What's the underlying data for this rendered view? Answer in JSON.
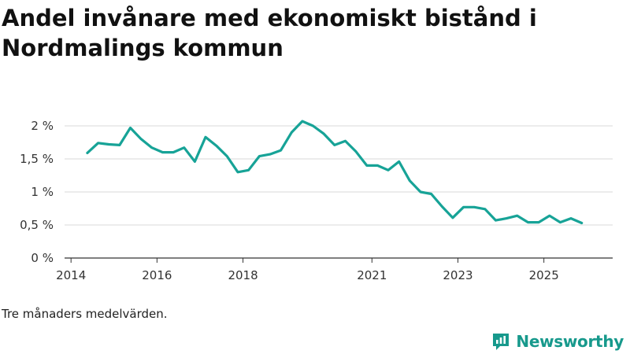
{
  "title": "Andel invånare med ekonomiskt bistånd i Nordmalings kommun",
  "note": "Tre månaders medelvärden.",
  "brand": {
    "name": "Newsworthy",
    "icon": "newsworthy-logo-icon",
    "color": "#17998c"
  },
  "colors": {
    "line": "#17a397",
    "grid": "#d9d9d9",
    "axis": "#333333"
  },
  "chart_data": {
    "type": "line",
    "title": "Andel invånare med ekonomiskt bistånd i Nordmalings kommun",
    "xlabel": "",
    "ylabel": "",
    "xlim": [
      2013.85,
      2026.6
    ],
    "ylim": [
      0,
      2
    ],
    "y_ticks": [
      {
        "value": 0,
        "label": "0 %"
      },
      {
        "value": 0.5,
        "label": "0,5 %"
      },
      {
        "value": 1,
        "label": "1 %"
      },
      {
        "value": 1.5,
        "label": "1,5 %"
      },
      {
        "value": 2,
        "label": "2 %"
      }
    ],
    "x_ticks": [
      {
        "value": 2014,
        "label": "2014"
      },
      {
        "value": 2016,
        "label": "2016"
      },
      {
        "value": 2018,
        "label": "2018"
      },
      {
        "value": 2021,
        "label": "2021"
      },
      {
        "value": 2023,
        "label": "2023"
      },
      {
        "value": 2025,
        "label": "2025"
      }
    ],
    "grid": true,
    "series": [
      {
        "name": "Andel invånare med ekonomiskt bistånd",
        "x": [
          2014.38,
          2014.63,
          2014.88,
          2015.13,
          2015.38,
          2015.63,
          2015.88,
          2016.13,
          2016.38,
          2016.63,
          2016.88,
          2017.13,
          2017.38,
          2017.63,
          2017.88,
          2018.13,
          2018.38,
          2018.63,
          2018.88,
          2019.13,
          2019.38,
          2019.63,
          2019.88,
          2020.13,
          2020.38,
          2020.63,
          2020.88,
          2021.13,
          2021.38,
          2021.63,
          2021.88,
          2022.13,
          2022.38,
          2022.63,
          2022.88,
          2023.13,
          2023.38,
          2023.63,
          2023.88,
          2024.13,
          2024.38,
          2024.63,
          2024.88,
          2025.13,
          2025.38,
          2025.63,
          2025.88
        ],
        "values": [
          1.59,
          1.74,
          1.72,
          1.71,
          1.97,
          1.8,
          1.67,
          1.6,
          1.6,
          1.67,
          1.46,
          1.83,
          1.7,
          1.54,
          1.3,
          1.33,
          1.54,
          1.57,
          1.63,
          1.9,
          2.07,
          2.0,
          1.88,
          1.71,
          1.77,
          1.61,
          1.4,
          1.4,
          1.33,
          1.46,
          1.17,
          1.0,
          0.97,
          0.78,
          0.61,
          0.77,
          0.77,
          0.74,
          0.57,
          0.6,
          0.64,
          0.54,
          0.54,
          0.64,
          0.54,
          0.6,
          0.53
        ]
      }
    ]
  }
}
